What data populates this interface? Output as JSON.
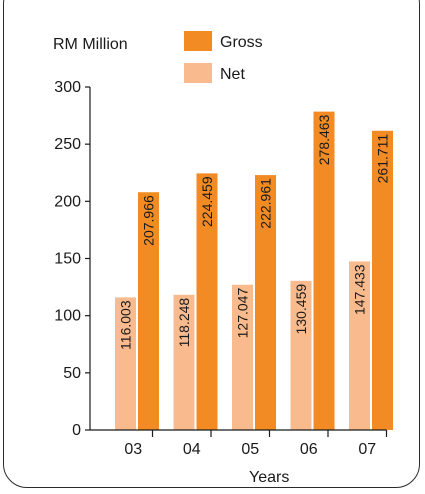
{
  "chart_data": {
    "type": "bar",
    "ylabel": "RM Million",
    "xlabel": "Years",
    "categories": [
      "03",
      "04",
      "05",
      "06",
      "07"
    ],
    "series": [
      {
        "name": "Net",
        "values": [
          116.003,
          118.248,
          127.047,
          130.459,
          147.433
        ],
        "value_labels": [
          "116.003",
          "118.248",
          "127.047",
          "130.459",
          "147.433"
        ],
        "color": "#f9bb8d"
      },
      {
        "name": "Gross",
        "values": [
          207.966,
          224.459,
          222.961,
          278.463,
          261.711
        ],
        "value_labels": [
          "207.966",
          "224.459",
          "222.961",
          "278.463",
          "261.711"
        ],
        "color": "#f28b24"
      }
    ],
    "ylim": [
      0,
      300
    ],
    "yticks": [
      0,
      50,
      100,
      150,
      200,
      250,
      300
    ],
    "grid": false,
    "legend": "top"
  }
}
